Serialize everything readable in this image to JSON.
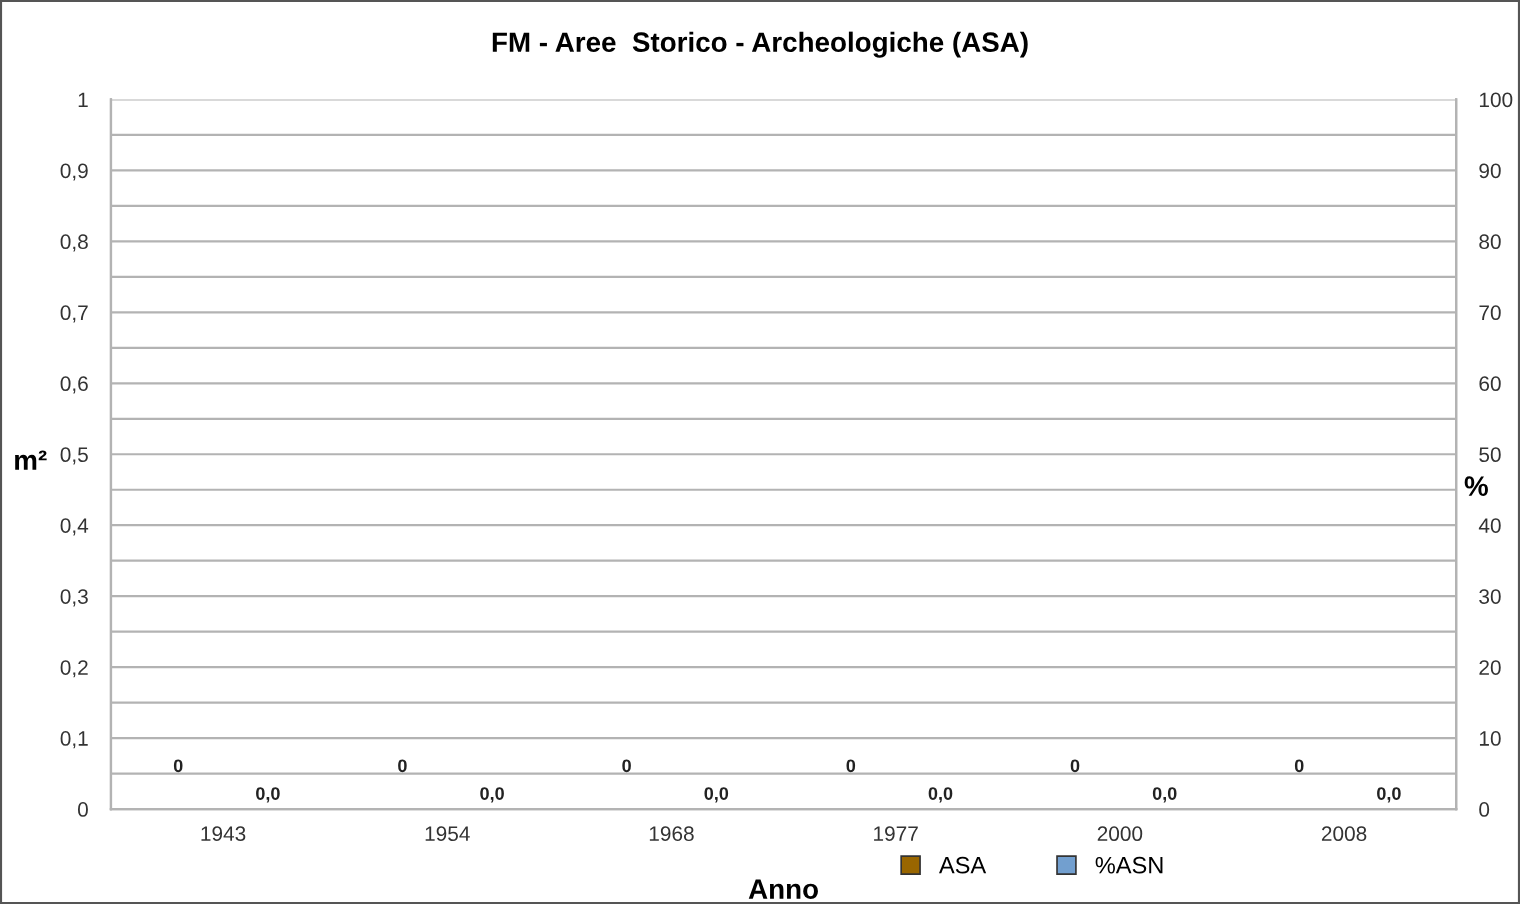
{
  "chart_data": {
    "type": "bar",
    "title": "FM - Aree  Storico - Archeologiche (ASA)",
    "xlabel": "Anno",
    "ylabel": "m²",
    "y2label": "%",
    "categories": [
      "1943",
      "1954",
      "1968",
      "1977",
      "2000",
      "2008"
    ],
    "series": [
      {
        "name": "ASA",
        "color": "#996600",
        "values": [
          0,
          0,
          0,
          0,
          0,
          0
        ],
        "value_labels": [
          "0",
          "0",
          "0",
          "0",
          "0",
          "0"
        ]
      },
      {
        "name": "%ASN",
        "color": "#729fcf",
        "axis": "y2",
        "values": [
          0,
          0,
          0,
          0,
          0,
          0
        ],
        "value_labels": [
          "0,0",
          "0,0",
          "0,0",
          "0,0",
          "0,0",
          "0,0"
        ]
      }
    ],
    "ylim": [
      0,
      1
    ],
    "yticks": [
      0,
      {
        "value": 0.05,
        "label": null
      },
      {
        "value": 0.1,
        "label": "0,1"
      },
      {
        "value": 0.15,
        "label": null
      },
      {
        "value": 0.2,
        "label": "0,2"
      },
      {
        "value": 0.25,
        "label": null
      },
      {
        "value": 0.3,
        "label": "0,3"
      },
      {
        "value": 0.35,
        "label": null
      },
      {
        "value": 0.4,
        "label": "0,4"
      },
      {
        "value": 0.45,
        "label": null
      },
      {
        "value": 0.5,
        "label": "0,5"
      },
      {
        "value": 0.55,
        "label": null
      },
      {
        "value": 0.6,
        "label": "0,6"
      },
      {
        "value": 0.65,
        "label": null
      },
      {
        "value": 0.7,
        "label": "0,7"
      },
      {
        "value": 0.75,
        "label": null
      },
      {
        "value": 0.8,
        "label": "0,8"
      },
      {
        "value": 0.85,
        "label": null
      },
      {
        "value": 0.9,
        "label": "0,9"
      },
      {
        "value": 0.95,
        "label": null
      },
      1
    ],
    "y2lim": [
      0,
      100
    ],
    "y2ticks": [
      0,
      10,
      20,
      30,
      40,
      50,
      60,
      70,
      80,
      90,
      100
    ],
    "grid": "y",
    "legend": "bottom right"
  }
}
